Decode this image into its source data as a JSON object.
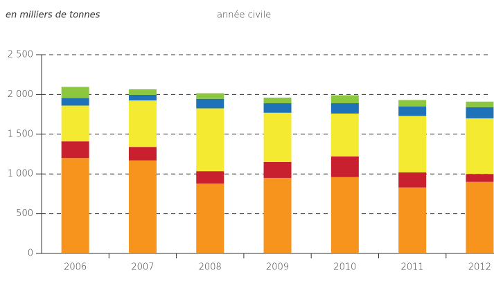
{
  "chart_data": {
    "type": "stacked_bar",
    "title": "en milliers de tonnes",
    "subtitle": "année civile",
    "categories": [
      "2006",
      "2007",
      "2008",
      "2009",
      "2010",
      "2011",
      "2012"
    ],
    "series": [
      {
        "color": "#f7941d",
        "values": [
          1200,
          1170,
          880,
          950,
          960,
          830,
          900
        ]
      },
      {
        "color": "#c8202f",
        "values": [
          210,
          170,
          155,
          200,
          260,
          190,
          100
        ]
      },
      {
        "color": "#f5ea32",
        "values": [
          450,
          585,
          790,
          620,
          540,
          710,
          700
        ]
      },
      {
        "color": "#1f72b8",
        "values": [
          95,
          70,
          120,
          120,
          130,
          120,
          140
        ]
      },
      {
        "color": "#8dc63f",
        "values": [
          140,
          70,
          70,
          70,
          100,
          80,
          70
        ]
      }
    ],
    "ylim": [
      0,
      2500
    ],
    "yticks": [
      0,
      500,
      {
        "value": 1000,
        "label": "1 000"
      },
      {
        "value": 1500,
        "label": "1 500"
      },
      {
        "value": 2000,
        "label": "2 000"
      },
      {
        "value": 2500,
        "label": "2 500"
      }
    ],
    "grid": true
  }
}
